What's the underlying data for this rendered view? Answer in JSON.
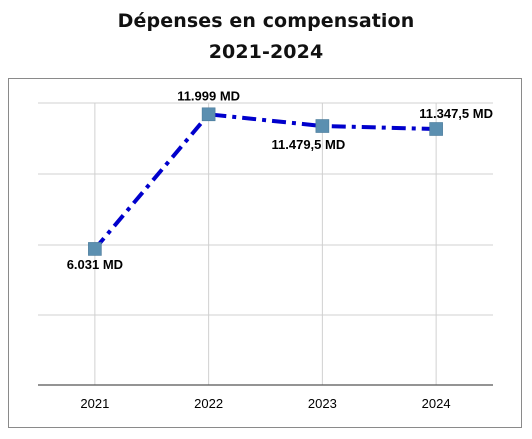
{
  "title_line1": "Dépenses en compensation",
  "title_line2": "2021-2024",
  "colors": {
    "line": "#0000cc",
    "marker": "#5b8fb0",
    "grid": "#d0d0d0",
    "axis": "#555555",
    "text": "#000000"
  },
  "chart_data": {
    "type": "line",
    "title": "Dépenses en compensation 2021-2024",
    "categories": [
      "2021",
      "2022",
      "2023",
      "2024"
    ],
    "series": [
      {
        "values": [
          6031,
          11999,
          11479.5,
          11347.5
        ],
        "labels": [
          "6.031 MD",
          "11.999 MD",
          "11.479,5 MD",
          "11.347,5 MD"
        ]
      }
    ],
    "ylim": [
      0,
      12500
    ],
    "grid": true,
    "line_style": "dash-dot",
    "marker": "square",
    "legend": "none"
  }
}
